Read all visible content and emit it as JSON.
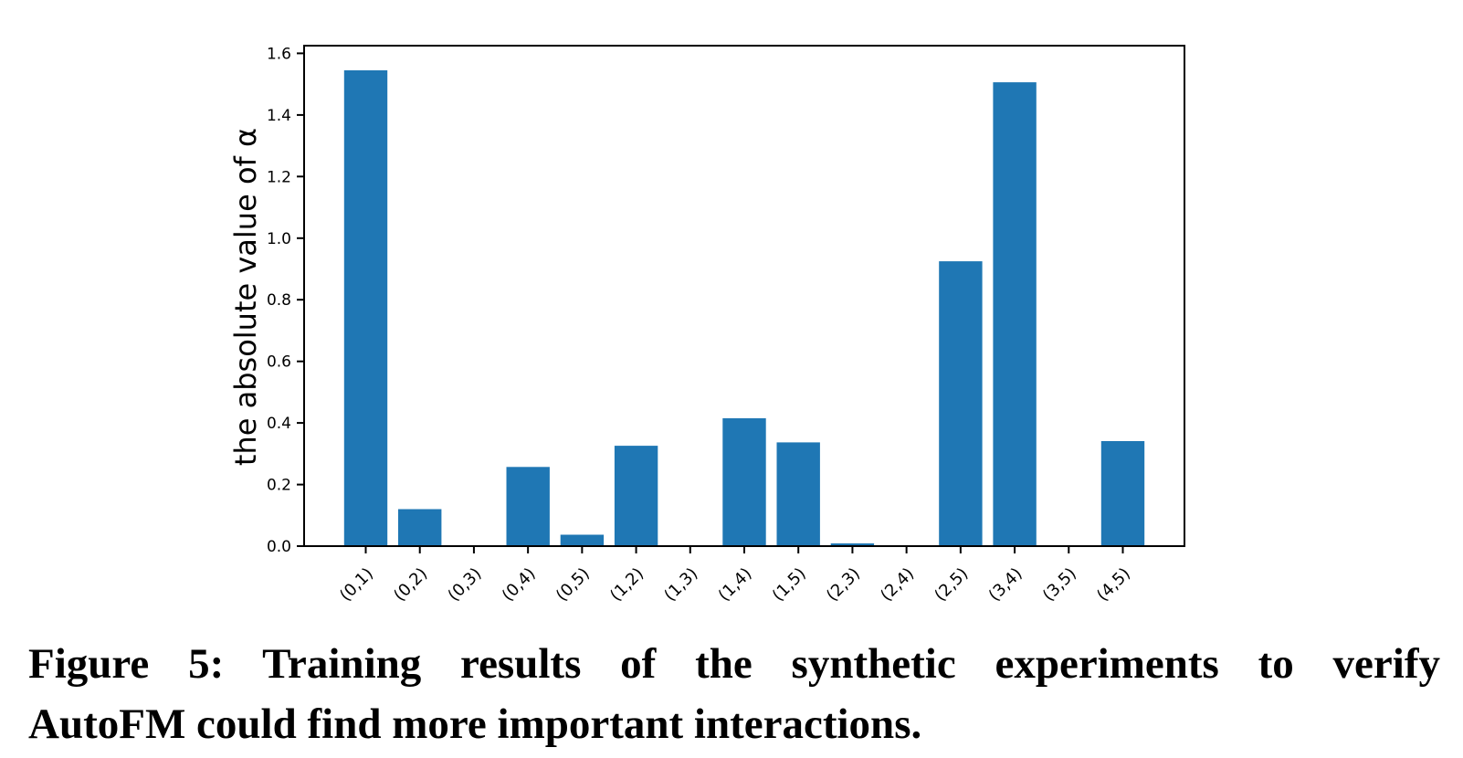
{
  "figure": {
    "caption_prefix": "Figure 5:",
    "caption_line1_rest": "Training results of the synthetic experiments to verify",
    "caption_line2": "AutoFM could find more important interactions."
  },
  "chart_data": {
    "type": "bar",
    "title": "",
    "xlabel": "",
    "ylabel": "the absolute value of α",
    "categories": [
      "(0,1)",
      "(0,2)",
      "(0,3)",
      "(0,4)",
      "(0,5)",
      "(1,2)",
      "(1,3)",
      "(1,4)",
      "(1,5)",
      "(2,3)",
      "(2,4)",
      "(2,5)",
      "(3,4)",
      "(3,5)",
      "(4,5)"
    ],
    "values": [
      1.545,
      0.12,
      0.0,
      0.257,
      0.037,
      0.326,
      0.0,
      0.415,
      0.337,
      0.009,
      0.0,
      0.925,
      1.506,
      0.0,
      0.341
    ],
    "y_ticks": [
      "0.0",
      "0.2",
      "0.4",
      "0.6",
      "0.8",
      "1.0",
      "1.2",
      "1.4",
      "1.6"
    ],
    "y_tick_values": [
      0.0,
      0.2,
      0.4,
      0.6,
      0.8,
      1.0,
      1.2,
      1.4,
      1.6
    ],
    "ylim": [
      0,
      1.625
    ],
    "x_tick_rotation": 45,
    "bar_width_ratio": 0.8,
    "grid": false,
    "legend": null,
    "bar_color": "#1f77b4",
    "axis_color": "#000000",
    "background_color": "#ffffff"
  }
}
